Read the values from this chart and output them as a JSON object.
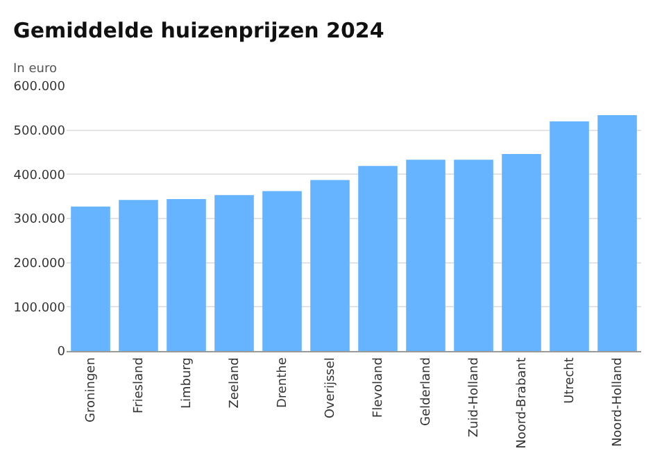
{
  "chart_data": {
    "type": "bar",
    "title": "Gemiddelde huizenprijzen 2024",
    "subtitle": "In euro",
    "categories": [
      "Groningen",
      "Friesland",
      "Limburg",
      "Zeeland",
      "Drenthe",
      "Overijssel",
      "Flevoland",
      "Gelderland",
      "Zuid-Holland",
      "Noord-Brabant",
      "Utrecht",
      "Noord-Holland"
    ],
    "values": [
      327000,
      342000,
      344000,
      353000,
      362000,
      387000,
      419000,
      433000,
      433000,
      446000,
      520000,
      534000
    ],
    "color": "#66b3ff",
    "ylim": [
      0,
      600000
    ],
    "yticks": [
      0,
      {
        "value": 100000,
        "label": "100.000"
      },
      {
        "value": 200000,
        "label": "200.000"
      },
      {
        "value": 300000,
        "label": "300.000"
      },
      {
        "value": 400000,
        "label": "400.000"
      },
      {
        "value": 500000,
        "label": "500.000"
      },
      {
        "value": 600000,
        "label": "600.000"
      }
    ],
    "grid": "y"
  }
}
